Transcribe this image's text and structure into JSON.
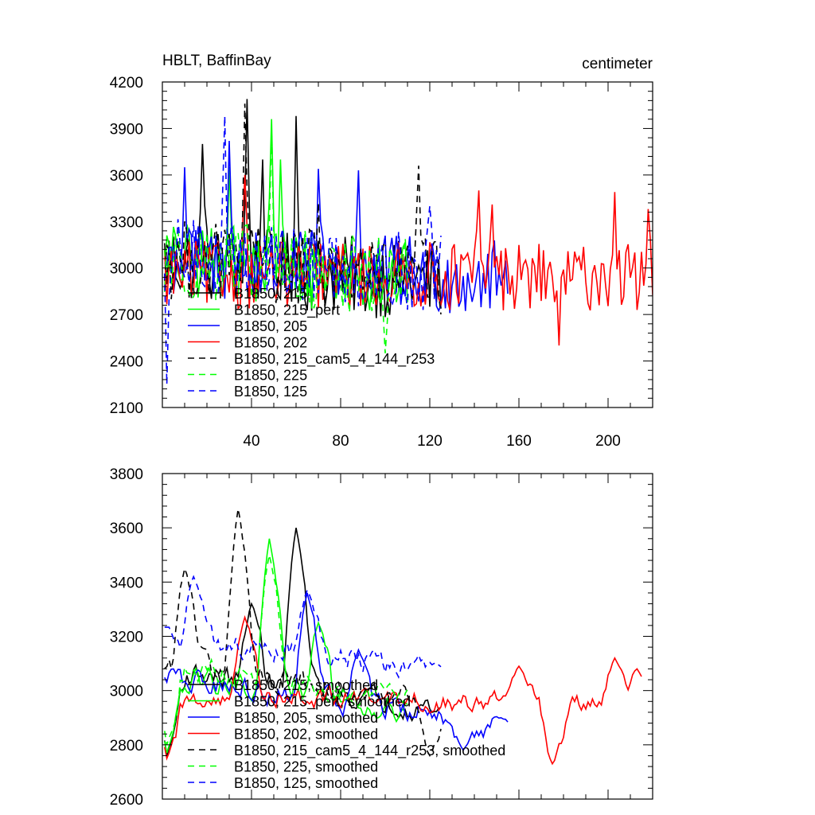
{
  "chart_data": [
    {
      "type": "line",
      "title_left": "HBLT, BaffinBay",
      "title_right": "centimeter",
      "xlabel": "",
      "ylabel": "",
      "xlim": [
        0,
        220
      ],
      "ylim": [
        2100,
        4200
      ],
      "x_ticks": [
        40,
        80,
        120,
        160,
        200
      ],
      "y_ticks": [
        2100,
        2400,
        2700,
        3000,
        3300,
        3600,
        3900,
        4200
      ],
      "series": [
        {
          "name": "B1850, 215",
          "color": "#000000",
          "dash": "solid",
          "length": 125,
          "base": 3050,
          "trend": -1.2,
          "noise": 260,
          "peaks": [
            [
              38,
              4090
            ],
            [
              60,
              3980
            ],
            [
              18,
              3800
            ],
            [
              45,
              3700
            ]
          ]
        },
        {
          "name": "B1850, 215_pert",
          "color": "#00ff00",
          "dash": "solid",
          "length": 110,
          "base": 3050,
          "trend": -1.0,
          "noise": 250,
          "peaks": [
            [
              49,
              3960
            ],
            [
              30,
              3650
            ],
            [
              53,
              3700
            ]
          ]
        },
        {
          "name": "B1850, 205",
          "color": "#0000ff",
          "dash": "solid",
          "length": 155,
          "base": 3050,
          "trend": -0.8,
          "noise": 250,
          "peaks": [
            [
              10,
              3650
            ],
            [
              70,
              3640
            ],
            [
              88,
              3630
            ],
            [
              30,
              3820
            ]
          ]
        },
        {
          "name": "B1850, 202",
          "color": "#ff0000",
          "dash": "solid",
          "length": 220,
          "base": 2960,
          "trend": -0.1,
          "noise": 220,
          "peaks": [
            [
              37,
              3600
            ],
            [
              142,
              3500
            ],
            [
              148,
              3410
            ],
            [
              203,
              3490
            ],
            [
              218,
              3380
            ],
            [
              178,
              2500
            ]
          ]
        },
        {
          "name": "B1850, 215_cam5_4_144_r253",
          "color": "#000000",
          "dash": "8,6",
          "length": 125,
          "base": 3060,
          "trend": -1.0,
          "noise": 260,
          "peaks": [
            [
              37,
              4060
            ],
            [
              115,
              3660
            ],
            [
              70,
              3420
            ]
          ]
        },
        {
          "name": "B1850, 225",
          "color": "#00ff00",
          "dash": "8,6",
          "length": 110,
          "base": 3060,
          "trend": -1.1,
          "noise": 260,
          "peaks": [
            [
              49,
              3900
            ],
            [
              100,
              2450
            ]
          ]
        },
        {
          "name": "B1850, 125",
          "color": "#0000ff",
          "dash": "8,6",
          "length": 125,
          "base": 3080,
          "trend": -0.9,
          "noise": 250,
          "peaks": [
            [
              28,
              3980
            ],
            [
              120,
              3400
            ],
            [
              2,
              2250
            ]
          ]
        }
      ]
    },
    {
      "type": "line",
      "xlabel": "",
      "ylabel": "",
      "xlim": [
        0,
        220
      ],
      "ylim": [
        2600,
        3800
      ],
      "x_ticks": [
        40,
        80,
        120,
        160,
        200
      ],
      "y_ticks": [
        2600,
        2800,
        3000,
        3200,
        3400,
        3600,
        3800
      ],
      "series": [
        {
          "name": "B1850, 215, smoothed",
          "color": "#000000",
          "dash": "solid",
          "length": 125,
          "base": 3080,
          "trend": -1.2,
          "noise": 70,
          "peaks": [
            [
              60,
              3600
            ],
            [
              40,
              3320
            ],
            [
              2,
              2760
            ]
          ]
        },
        {
          "name": "B1850, 215_pert, smoothed",
          "color": "#00ff00",
          "dash": "solid",
          "length": 110,
          "base": 3060,
          "trend": -1.2,
          "noise": 70,
          "peaks": [
            [
              48,
              3560
            ],
            [
              70,
              3250
            ],
            [
              2,
              2770
            ]
          ]
        },
        {
          "name": "B1850, 205, smoothed",
          "color": "#0000ff",
          "dash": "solid",
          "length": 155,
          "base": 3050,
          "trend": -1.2,
          "noise": 70,
          "peaks": [
            [
              65,
              3360
            ],
            [
              88,
              3150
            ],
            [
              135,
              2780
            ],
            [
              152,
              2900
            ]
          ]
        },
        {
          "name": "B1850, 202, smoothed",
          "color": "#ff0000",
          "dash": "solid",
          "length": 215,
          "base": 2980,
          "trend": -0.15,
          "noise": 60,
          "peaks": [
            [
              37,
              3270
            ],
            [
              160,
              3090
            ],
            [
              203,
              3120
            ],
            [
              175,
              2730
            ],
            [
              213,
              3080
            ],
            [
              2,
              2750
            ]
          ]
        },
        {
          "name": "B1850, 215_cam5_4_144_r253, smoothed",
          "color": "#000000",
          "dash": "8,6",
          "length": 125,
          "base": 3100,
          "trend": -1.1,
          "noise": 70,
          "peaks": [
            [
              34,
              3670
            ],
            [
              10,
              3450
            ],
            [
              120,
              2760
            ]
          ]
        },
        {
          "name": "B1850, 225, smoothed",
          "color": "#00ff00",
          "dash": "8,6",
          "length": 110,
          "base": 3100,
          "trend": -1.2,
          "noise": 70,
          "peaks": [
            [
              48,
              3500
            ],
            [
              2,
              2800
            ]
          ]
        },
        {
          "name": "B1850, 125, smoothed",
          "color": "#0000ff",
          "dash": "8,6",
          "length": 125,
          "base": 3200,
          "trend": -1.0,
          "noise": 70,
          "peaks": [
            [
              14,
              3420
            ],
            [
              65,
              3370
            ],
            [
              122,
              3100
            ]
          ]
        }
      ]
    }
  ]
}
